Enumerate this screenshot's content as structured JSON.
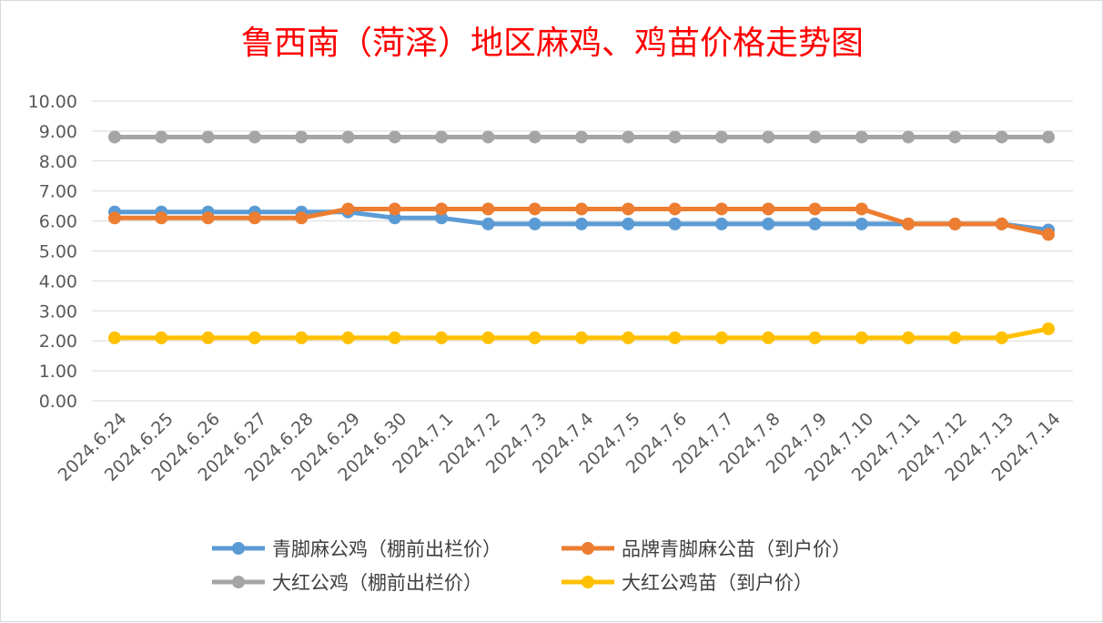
{
  "chart_data": {
    "type": "line",
    "title": "鲁西南（菏泽）地区麻鸡、鸡苗价格走势图",
    "xlabel": "",
    "ylabel": "",
    "ylim": [
      0,
      10
    ],
    "ytick_step": 1,
    "ytick_labels": [
      "0.00",
      "1.00",
      "2.00",
      "3.00",
      "4.00",
      "5.00",
      "6.00",
      "7.00",
      "8.00",
      "9.00",
      "10.00"
    ],
    "grid": true,
    "legend_position": "bottom",
    "categories": [
      "2024.6.24",
      "2024.6.25",
      "2024.6.26",
      "2024.6.27",
      "2024.6.28",
      "2024.6.29",
      "2024.6.30",
      "2024.7.1",
      "2024.7.2",
      "2024.7.3",
      "2024.7.4",
      "2024.7.5",
      "2024.7.6",
      "2024.7.7",
      "2024.7.8",
      "2024.7.9",
      "2024.7.10",
      "2024.7.11",
      "2024.7.12",
      "2024.7.13",
      "2024.7.14"
    ],
    "series": [
      {
        "name": "青脚麻公鸡（棚前出栏价）",
        "color": "#5b9bd5",
        "values": [
          6.3,
          6.3,
          6.3,
          6.3,
          6.3,
          6.3,
          6.1,
          6.1,
          5.9,
          5.9,
          5.9,
          5.9,
          5.9,
          5.9,
          5.9,
          5.9,
          5.9,
          5.9,
          5.9,
          5.9,
          5.7
        ]
      },
      {
        "name": "品牌青脚麻公苗（到户价）",
        "color": "#ed7d31",
        "values": [
          6.1,
          6.1,
          6.1,
          6.1,
          6.1,
          6.4,
          6.4,
          6.4,
          6.4,
          6.4,
          6.4,
          6.4,
          6.4,
          6.4,
          6.4,
          6.4,
          6.4,
          5.9,
          5.9,
          5.9,
          5.55
        ]
      },
      {
        "name": "大红公鸡（棚前出栏价）",
        "color": "#a5a5a5",
        "values": [
          8.8,
          8.8,
          8.8,
          8.8,
          8.8,
          8.8,
          8.8,
          8.8,
          8.8,
          8.8,
          8.8,
          8.8,
          8.8,
          8.8,
          8.8,
          8.8,
          8.8,
          8.8,
          8.8,
          8.8,
          8.8
        ]
      },
      {
        "name": "大红公鸡苗（到户价）",
        "color": "#ffc000",
        "values": [
          2.1,
          2.1,
          2.1,
          2.1,
          2.1,
          2.1,
          2.1,
          2.1,
          2.1,
          2.1,
          2.1,
          2.1,
          2.1,
          2.1,
          2.1,
          2.1,
          2.1,
          2.1,
          2.1,
          2.1,
          2.4
        ]
      }
    ]
  }
}
